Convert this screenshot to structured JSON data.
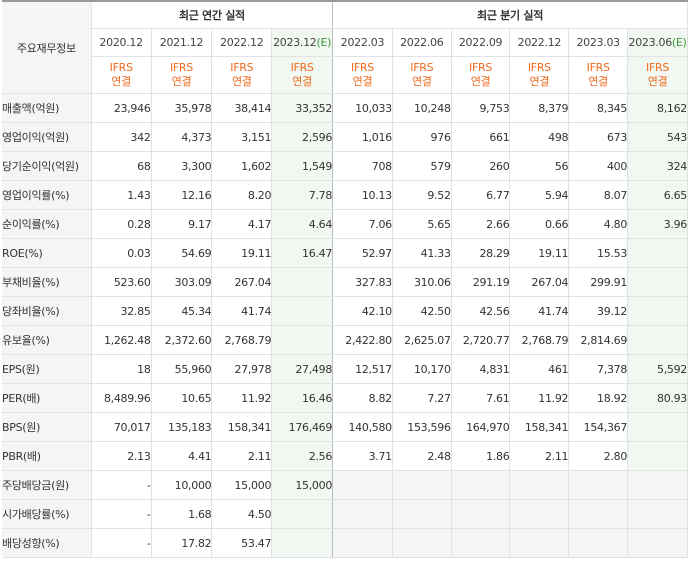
{
  "header": {
    "row_title": "주요재무정보",
    "annual_group": "최근 연간 실적",
    "quarter_group": "최근 분기 실적",
    "annual_periods": [
      "2020.12",
      "2021.12",
      "2022.12",
      "2023.12"
    ],
    "annual_estimate_suffix": "(E)",
    "quarter_periods": [
      "2022.03",
      "2022.06",
      "2022.09",
      "2022.12",
      "2023.03",
      "2023.06"
    ],
    "quarter_estimate_suffix": "(E)",
    "ifrs_line1": "IFRS",
    "ifrs_line2": "연결"
  },
  "rows": [
    {
      "label": "매출액(억원)",
      "annual": [
        "23,946",
        "35,978",
        "38,414",
        "33,352"
      ],
      "quarter": [
        "10,033",
        "10,248",
        "9,753",
        "8,379",
        "8,345",
        "8,162"
      ]
    },
    {
      "label": "영업이익(억원)",
      "annual": [
        "342",
        "4,373",
        "3,151",
        "2,596"
      ],
      "quarter": [
        "1,016",
        "976",
        "661",
        "498",
        "673",
        "543"
      ]
    },
    {
      "label": "당기순이익(억원)",
      "annual": [
        "68",
        "3,300",
        "1,602",
        "1,549"
      ],
      "quarter": [
        "708",
        "579",
        "260",
        "56",
        "400",
        "324"
      ]
    },
    {
      "label": "영업이익률(%)",
      "annual": [
        "1.43",
        "12.16",
        "8.20",
        "7.78"
      ],
      "quarter": [
        "10.13",
        "9.52",
        "6.77",
        "5.94",
        "8.07",
        "6.65"
      ]
    },
    {
      "label": "순이익률(%)",
      "annual": [
        "0.28",
        "9.17",
        "4.17",
        "4.64"
      ],
      "quarter": [
        "7.06",
        "5.65",
        "2.66",
        "0.66",
        "4.80",
        "3.96"
      ]
    },
    {
      "label": "ROE(%)",
      "annual": [
        "0.03",
        "54.69",
        "19.11",
        "16.47"
      ],
      "quarter": [
        "52.97",
        "41.33",
        "28.29",
        "19.11",
        "15.53",
        ""
      ]
    },
    {
      "label": "부채비율(%)",
      "annual": [
        "523.60",
        "303.09",
        "267.04",
        ""
      ],
      "quarter": [
        "327.83",
        "310.06",
        "291.19",
        "267.04",
        "299.91",
        ""
      ]
    },
    {
      "label": "당좌비율(%)",
      "annual": [
        "32.85",
        "45.34",
        "41.74",
        ""
      ],
      "quarter": [
        "42.10",
        "42.50",
        "42.56",
        "41.74",
        "39.12",
        ""
      ]
    },
    {
      "label": "유보율(%)",
      "annual": [
        "1,262.48",
        "2,372.60",
        "2,768.79",
        ""
      ],
      "quarter": [
        "2,422.80",
        "2,625.07",
        "2,720.77",
        "2,768.79",
        "2,814.69",
        ""
      ]
    },
    {
      "label": "EPS(원)",
      "annual": [
        "18",
        "55,960",
        "27,978",
        "27,498"
      ],
      "quarter": [
        "12,517",
        "10,170",
        "4,831",
        "461",
        "7,378",
        "5,592"
      ]
    },
    {
      "label": "PER(배)",
      "annual": [
        "8,489.96",
        "10.65",
        "11.92",
        "16.46"
      ],
      "quarter": [
        "8.82",
        "7.27",
        "7.61",
        "11.92",
        "18.92",
        "80.93"
      ]
    },
    {
      "label": "BPS(원)",
      "annual": [
        "70,017",
        "135,183",
        "158,341",
        "176,469"
      ],
      "quarter": [
        "140,580",
        "153,596",
        "164,970",
        "158,341",
        "154,367",
        ""
      ]
    },
    {
      "label": "PBR(배)",
      "annual": [
        "2.13",
        "4.41",
        "2.11",
        "2.56"
      ],
      "quarter": [
        "3.71",
        "2.48",
        "1.86",
        "2.11",
        "2.80",
        ""
      ]
    },
    {
      "label": "주당배당금(원)",
      "annual": [
        "-",
        "10,000",
        "15,000",
        "15,000"
      ],
      "quarter": [
        "",
        "",
        "",
        "",
        "",
        ""
      ]
    },
    {
      "label": "시가배당률(%)",
      "annual": [
        "-",
        "1.68",
        "4.50",
        ""
      ],
      "quarter": [
        "",
        "",
        "",
        "",
        "",
        ""
      ]
    },
    {
      "label": "배당성향(%)",
      "annual": [
        "-",
        "17.82",
        "53.47",
        ""
      ],
      "quarter": [
        "",
        "",
        "",
        "",
        "",
        ""
      ]
    }
  ]
}
